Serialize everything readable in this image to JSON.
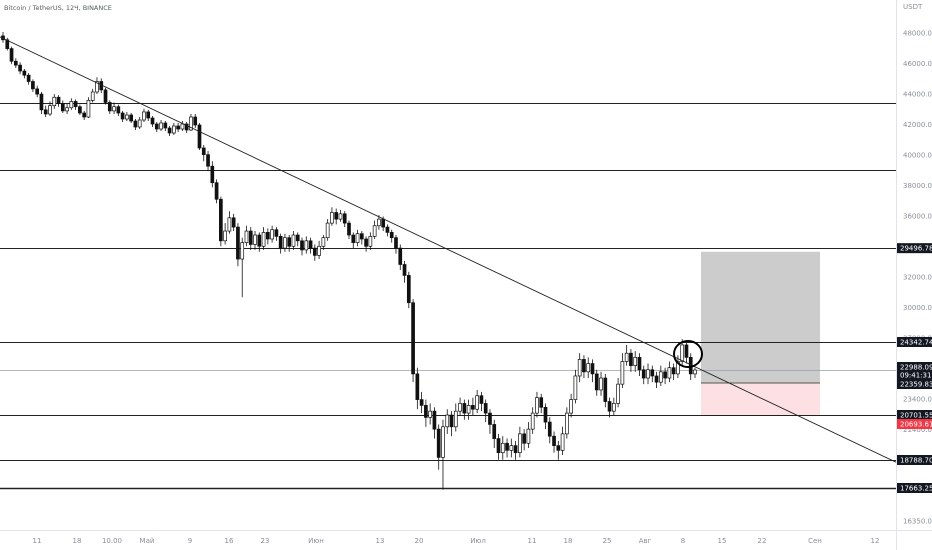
{
  "header": {
    "symbol_title": "Bitcoin / TetherUS, 12Ч, BINANCE",
    "currency": "USDT"
  },
  "chart_data": {
    "type": "candlestick",
    "y_axis_ticks": [
      "48000.00",
      "46000.00",
      "44000.00",
      "42000.00",
      "40000.00",
      "38000.00",
      "36000.00",
      "34000.00",
      "32000.00",
      "30000.00",
      "27800.00",
      "25600.00",
      "23400.00",
      "21400.00",
      "19800.00",
      "18000.00",
      "16350.00"
    ],
    "x_axis_ticks": [
      "11",
      "18",
      "10.00",
      "Май",
      "9",
      "16",
      "23",
      "Июн",
      "13",
      "20",
      "Июл",
      "11",
      "18",
      "25",
      "Авг",
      "8",
      "15",
      "22",
      "Сен",
      "12"
    ],
    "ylim": [
      16350,
      48000
    ],
    "horizontal_levels": [
      {
        "price": 41000,
        "label": ""
      },
      {
        "price": 35000,
        "label": ""
      },
      {
        "price": 29496.78,
        "label": "29496.78"
      },
      {
        "price": 24342.74,
        "label": "24342.74"
      },
      {
        "price": 20701.55,
        "label": "20701.55"
      },
      {
        "price": 18788.7,
        "label": "18788.70"
      },
      {
        "price": 17663.25,
        "label": "17663.25"
      }
    ],
    "price_badges": [
      {
        "label": "22988.09",
        "style": "dark"
      },
      {
        "label": "09:41:31",
        "style": "dark"
      },
      {
        "label": "22359.83",
        "style": "dark"
      },
      {
        "label": "20693.61",
        "style": "red"
      }
    ],
    "trendline": {
      "from_price": 47500,
      "to_price": 18700
    },
    "position_box": {
      "take_profit": 29300,
      "entry": 22359.83,
      "stop_loss": 20693.61
    },
    "candles": [
      [
        47600,
        47200,
        48000,
        46900
      ],
      [
        47200,
        46300,
        47400,
        46100
      ],
      [
        46300,
        45000,
        46500,
        44700
      ],
      [
        45000,
        44600,
        45300,
        44300
      ],
      [
        44600,
        44000,
        44900,
        43700
      ],
      [
        44000,
        43600,
        44200,
        43300
      ],
      [
        43600,
        43000,
        43800,
        42700
      ],
      [
        43000,
        42300,
        43200,
        42000
      ],
      [
        42300,
        41800,
        42600,
        41500
      ],
      [
        41800,
        40300,
        42000,
        39900
      ],
      [
        40300,
        39900,
        40700,
        39600
      ],
      [
        39900,
        40700,
        41100,
        39700
      ],
      [
        40700,
        41500,
        41800,
        40400
      ],
      [
        41500,
        40900,
        41700,
        40600
      ],
      [
        40900,
        40200,
        41200,
        40000
      ],
      [
        40200,
        40500,
        40900,
        39900
      ],
      [
        40500,
        41100,
        41400,
        40300
      ],
      [
        41100,
        40600,
        41300,
        40300
      ],
      [
        40600,
        40000,
        40800,
        39800
      ],
      [
        40000,
        39600,
        40200,
        39300
      ],
      [
        39600,
        41200,
        41500,
        39500
      ],
      [
        41200,
        42000,
        42300,
        41000
      ],
      [
        42000,
        43000,
        43400,
        41800
      ],
      [
        43000,
        42200,
        43300,
        41900
      ],
      [
        42200,
        41000,
        42400,
        40800
      ],
      [
        41000,
        40200,
        41200,
        39900
      ],
      [
        40200,
        40600,
        41000,
        39900
      ],
      [
        40600,
        40000,
        40800,
        39700
      ],
      [
        40000,
        39400,
        40200,
        39100
      ],
      [
        39400,
        39800,
        40100,
        39200
      ],
      [
        39800,
        39200,
        40000,
        39000
      ],
      [
        39200,
        38600,
        39400,
        38300
      ],
      [
        38600,
        39300,
        39600,
        38400
      ],
      [
        39300,
        40100,
        40400,
        39100
      ],
      [
        40100,
        39500,
        40300,
        39200
      ],
      [
        39500,
        38900,
        39700,
        38600
      ],
      [
        38900,
        38400,
        39100,
        38100
      ],
      [
        38400,
        39000,
        39300,
        38200
      ],
      [
        39000,
        38500,
        39200,
        38200
      ],
      [
        38500,
        38000,
        38700,
        37700
      ],
      [
        38000,
        38700,
        39000,
        37800
      ],
      [
        38700,
        38400,
        39000,
        38100
      ],
      [
        38400,
        38900,
        39200,
        38200
      ],
      [
        38900,
        38300,
        39100,
        38000
      ],
      [
        38300,
        39600,
        39900,
        38200
      ],
      [
        39600,
        38800,
        39900,
        38500
      ],
      [
        38800,
        36500,
        39000,
        36300
      ],
      [
        36500,
        35900,
        36800,
        35500
      ],
      [
        35900,
        35200,
        36200,
        34900
      ],
      [
        35200,
        34200,
        35500,
        33900
      ],
      [
        34200,
        33000,
        34400,
        32700
      ],
      [
        33000,
        29900,
        33200,
        29600
      ],
      [
        29900,
        30600,
        31200,
        29700
      ],
      [
        30600,
        31600,
        32100,
        30400
      ],
      [
        31600,
        30900,
        31900,
        30600
      ],
      [
        30900,
        28900,
        31200,
        28500
      ],
      [
        28900,
        29800,
        30100,
        26800
      ],
      [
        29800,
        30600,
        31000,
        29600
      ],
      [
        30600,
        29700,
        30900,
        29400
      ],
      [
        29700,
        30300,
        30600,
        29400
      ],
      [
        30300,
        29600,
        30500,
        29300
      ],
      [
        29600,
        30500,
        30900,
        29400
      ],
      [
        30500,
        30000,
        30800,
        29700
      ],
      [
        30000,
        30700,
        31000,
        29800
      ],
      [
        30700,
        30200,
        30900,
        29900
      ],
      [
        30200,
        29500,
        30400,
        29200
      ],
      [
        29500,
        30100,
        30400,
        29300
      ],
      [
        30100,
        29600,
        30300,
        29300
      ],
      [
        29600,
        30300,
        30600,
        29400
      ],
      [
        30300,
        29900,
        30500,
        29600
      ],
      [
        29900,
        29400,
        30100,
        29100
      ],
      [
        29400,
        29900,
        30200,
        29200
      ],
      [
        29900,
        29500,
        30100,
        29200
      ],
      [
        29500,
        29100,
        29700,
        28800
      ],
      [
        29100,
        29600,
        29900,
        28900
      ],
      [
        29600,
        30100,
        30300,
        29400
      ],
      [
        30100,
        31200,
        31500,
        29900
      ],
      [
        31200,
        32000,
        32400,
        31000
      ],
      [
        32000,
        31500,
        32300,
        31100
      ],
      [
        31500,
        31900,
        32200,
        31300
      ],
      [
        31900,
        31200,
        32100,
        30900
      ],
      [
        31200,
        30300,
        31400,
        30000
      ],
      [
        30300,
        29800,
        30500,
        29500
      ],
      [
        29800,
        30400,
        30700,
        29600
      ],
      [
        30400,
        30000,
        30600,
        29700
      ],
      [
        30000,
        29600,
        30200,
        29300
      ],
      [
        29600,
        30200,
        30500,
        29400
      ],
      [
        30200,
        31000,
        31400,
        30000
      ],
      [
        31000,
        31500,
        31800,
        30700
      ],
      [
        31500,
        30900,
        31700,
        30600
      ],
      [
        30900,
        30500,
        31100,
        30200
      ],
      [
        30500,
        30100,
        30700,
        29800
      ],
      [
        30100,
        29500,
        30300,
        29200
      ],
      [
        29500,
        28600,
        29700,
        28300
      ],
      [
        28600,
        28000,
        28800,
        27600
      ],
      [
        28000,
        26500,
        28200,
        26200
      ],
      [
        26500,
        22800,
        26700,
        22400
      ],
      [
        22800,
        21500,
        23100,
        21000
      ],
      [
        21500,
        21200,
        21900,
        20800
      ],
      [
        21200,
        20600,
        21500,
        20200
      ],
      [
        20600,
        20900,
        21300,
        20300
      ],
      [
        20900,
        20100,
        21100,
        19700
      ],
      [
        20100,
        18900,
        20300,
        18400
      ],
      [
        18900,
        20200,
        20500,
        17600
      ],
      [
        20200,
        20700,
        21000,
        19900
      ],
      [
        20700,
        20200,
        20900,
        19800
      ],
      [
        20200,
        20900,
        21300,
        20000
      ],
      [
        20900,
        21300,
        21600,
        20700
      ],
      [
        21300,
        20800,
        21500,
        20500
      ],
      [
        20800,
        21200,
        21500,
        20500
      ],
      [
        21200,
        21000,
        21600,
        20700
      ],
      [
        21000,
        21700,
        22000,
        20800
      ],
      [
        21700,
        21300,
        21900,
        20900
      ],
      [
        21300,
        20800,
        21500,
        20400
      ],
      [
        20800,
        20300,
        21000,
        19900
      ],
      [
        20300,
        19700,
        20500,
        19300
      ],
      [
        19700,
        19100,
        19900,
        18800
      ],
      [
        19100,
        19500,
        19800,
        18800
      ],
      [
        19500,
        19200,
        19700,
        18900
      ],
      [
        19200,
        19400,
        19700,
        18900
      ],
      [
        19400,
        19100,
        19600,
        18800
      ],
      [
        19100,
        19900,
        20200,
        18900
      ],
      [
        19900,
        19500,
        20100,
        19200
      ],
      [
        19500,
        20100,
        20400,
        19300
      ],
      [
        20100,
        20800,
        21100,
        19900
      ],
      [
        20800,
        21600,
        21900,
        20600
      ],
      [
        21600,
        21100,
        21800,
        20800
      ],
      [
        21100,
        20400,
        21300,
        20100
      ],
      [
        20400,
        19800,
        20600,
        19500
      ],
      [
        19800,
        19400,
        20000,
        19100
      ],
      [
        19400,
        19200,
        19600,
        18800
      ],
      [
        19200,
        19900,
        20200,
        19000
      ],
      [
        19900,
        20800,
        21100,
        19700
      ],
      [
        20800,
        21500,
        21800,
        20600
      ],
      [
        21500,
        22700,
        23000,
        21300
      ],
      [
        22700,
        23500,
        23800,
        22400
      ],
      [
        23500,
        22900,
        23700,
        22600
      ],
      [
        22900,
        23300,
        23600,
        22600
      ],
      [
        23300,
        22800,
        23500,
        22400
      ],
      [
        22800,
        22000,
        23000,
        21700
      ],
      [
        22000,
        22600,
        22900,
        21700
      ],
      [
        22600,
        21400,
        22800,
        21100
      ],
      [
        21400,
        20900,
        21600,
        20600
      ],
      [
        20900,
        21300,
        21600,
        20700
      ],
      [
        21300,
        22300,
        22600,
        21100
      ],
      [
        22300,
        23400,
        23800,
        22100
      ],
      [
        23400,
        23800,
        24200,
        23200
      ],
      [
        23800,
        23200,
        24000,
        22900
      ],
      [
        23200,
        23600,
        23900,
        22900
      ],
      [
        23600,
        23000,
        23800,
        22700
      ],
      [
        23000,
        22600,
        23200,
        22300
      ],
      [
        22600,
        23000,
        23300,
        22300
      ],
      [
        23000,
        22700,
        23200,
        22400
      ],
      [
        22700,
        22400,
        22900,
        22100
      ],
      [
        22400,
        22900,
        23200,
        22200
      ],
      [
        22900,
        22600,
        23100,
        22300
      ],
      [
        22600,
        23100,
        23400,
        22400
      ],
      [
        23100,
        22800,
        23300,
        22500
      ],
      [
        22800,
        23400,
        23700,
        22600
      ],
      [
        23400,
        24200,
        24500,
        23200
      ],
      [
        24200,
        23600,
        24400,
        23300
      ],
      [
        23600,
        22800,
        23800,
        22500
      ],
      [
        22800,
        22988,
        23100,
        22600
      ]
    ]
  }
}
